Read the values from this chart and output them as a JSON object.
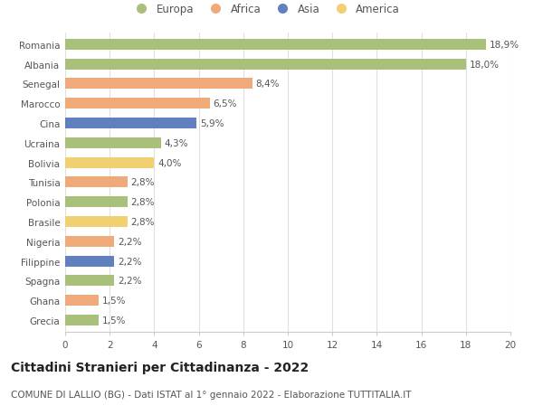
{
  "categories": [
    "Romania",
    "Albania",
    "Senegal",
    "Marocco",
    "Cina",
    "Ucraina",
    "Bolivia",
    "Tunisia",
    "Polonia",
    "Brasile",
    "Nigeria",
    "Filippine",
    "Spagna",
    "Ghana",
    "Grecia"
  ],
  "values": [
    18.9,
    18.0,
    8.4,
    6.5,
    5.9,
    4.3,
    4.0,
    2.8,
    2.8,
    2.8,
    2.2,
    2.2,
    2.2,
    1.5,
    1.5
  ],
  "labels": [
    "18,9%",
    "18,0%",
    "8,4%",
    "6,5%",
    "5,9%",
    "4,3%",
    "4,0%",
    "2,8%",
    "2,8%",
    "2,8%",
    "2,2%",
    "2,2%",
    "2,2%",
    "1,5%",
    "1,5%"
  ],
  "continents": [
    "Europa",
    "Europa",
    "Africa",
    "Africa",
    "Asia",
    "Europa",
    "America",
    "Africa",
    "Europa",
    "America",
    "Africa",
    "Asia",
    "Europa",
    "Africa",
    "Europa"
  ],
  "colors": {
    "Europa": "#a8c07a",
    "Africa": "#f0aa7a",
    "Asia": "#6080c0",
    "America": "#f0d070"
  },
  "legend_order": [
    "Europa",
    "Africa",
    "Asia",
    "America"
  ],
  "xlim": [
    0,
    20
  ],
  "xticks": [
    0,
    2,
    4,
    6,
    8,
    10,
    12,
    14,
    16,
    18,
    20
  ],
  "title": "Cittadini Stranieri per Cittadinanza - 2022",
  "subtitle": "COMUNE DI LALLIO (BG) - Dati ISTAT al 1° gennaio 2022 - Elaborazione TUTTITALIA.IT",
  "title_fontsize": 10,
  "subtitle_fontsize": 7.5,
  "label_fontsize": 7.5,
  "tick_fontsize": 7.5,
  "legend_fontsize": 8.5,
  "bar_height": 0.55,
  "background_color": "#ffffff",
  "grid_color": "#e0e0e0"
}
